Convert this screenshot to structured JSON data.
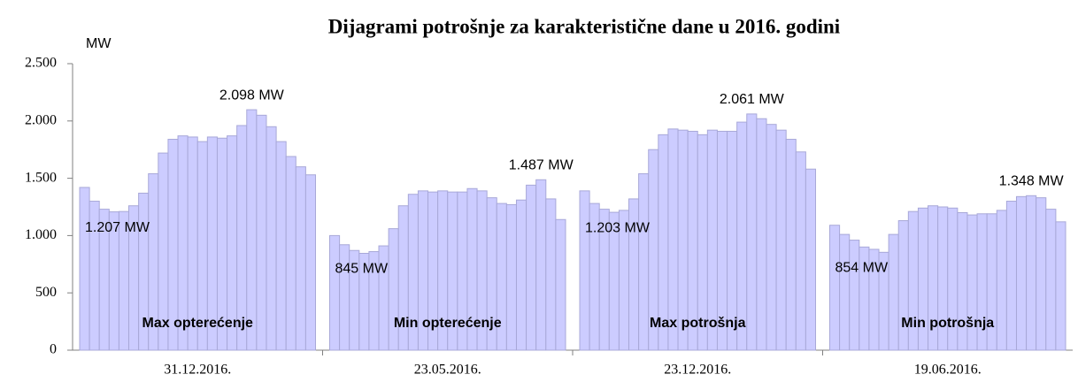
{
  "chart_data": {
    "type": "bar",
    "title": "Dijagrami potrošnje za karakteristične dane u 2016. godini",
    "y_unit": "MW",
    "ylim": [
      0,
      2500
    ],
    "yticks": [
      0,
      500,
      {
        "value": 1000,
        "label": "1.000"
      },
      {
        "value": 1500,
        "label": "1.500"
      },
      {
        "value": 2000,
        "label": "2.000"
      },
      {
        "value": 2500,
        "label": "2.500"
      }
    ],
    "color": "#ccccff",
    "categories": [
      "31.12.2016.",
      "23.05.2016.",
      "23.12.2016.",
      "19.06.2016."
    ],
    "groups": [
      {
        "name": "Max opterećenje",
        "values": [
          1420,
          1300,
          1230,
          1207,
          1210,
          1260,
          1370,
          1540,
          1720,
          1840,
          1870,
          1860,
          1820,
          1860,
          1850,
          1870,
          1960,
          2098,
          2050,
          1950,
          1820,
          1690,
          1600,
          1530
        ],
        "value_labels": [
          null,
          null,
          null,
          "1.207 MW",
          null,
          null,
          null,
          null,
          null,
          null,
          null,
          null,
          null,
          null,
          null,
          null,
          null,
          "2.098 MW",
          null,
          null,
          null,
          null,
          null,
          null
        ]
      },
      {
        "name": "Min opterećenje",
        "values": [
          1000,
          920,
          870,
          845,
          860,
          910,
          1060,
          1260,
          1360,
          1390,
          1380,
          1390,
          1380,
          1380,
          1410,
          1390,
          1330,
          1280,
          1270,
          1310,
          1440,
          1487,
          1320,
          1140
        ],
        "value_labels": [
          null,
          null,
          null,
          "845 MW",
          null,
          null,
          null,
          null,
          null,
          null,
          null,
          null,
          null,
          null,
          null,
          null,
          null,
          null,
          null,
          null,
          null,
          "1.487 MW",
          null,
          null
        ]
      },
      {
        "name": "Max potrošnja",
        "values": [
          1390,
          1280,
          1230,
          1203,
          1220,
          1320,
          1540,
          1750,
          1880,
          1930,
          1920,
          1910,
          1880,
          1920,
          1910,
          1910,
          1990,
          2061,
          2020,
          1970,
          1920,
          1840,
          1730,
          1580
        ],
        "value_labels": [
          null,
          null,
          null,
          "1.203 MW",
          null,
          null,
          null,
          null,
          null,
          null,
          null,
          null,
          null,
          null,
          null,
          null,
          null,
          "2.061 MW",
          null,
          null,
          null,
          null,
          null,
          null
        ]
      },
      {
        "name": "Min potrošnja",
        "values": [
          1090,
          1010,
          960,
          900,
          880,
          854,
          1010,
          1130,
          1210,
          1240,
          1260,
          1250,
          1240,
          1200,
          1180,
          1190,
          1190,
          1220,
          1300,
          1340,
          1348,
          1330,
          1230,
          1120
        ],
        "value_labels": [
          null,
          null,
          null,
          null,
          null,
          "854 MW",
          null,
          null,
          null,
          null,
          null,
          null,
          null,
          null,
          null,
          null,
          null,
          null,
          null,
          null,
          "1.348 MW",
          null,
          null,
          null
        ]
      }
    ]
  }
}
